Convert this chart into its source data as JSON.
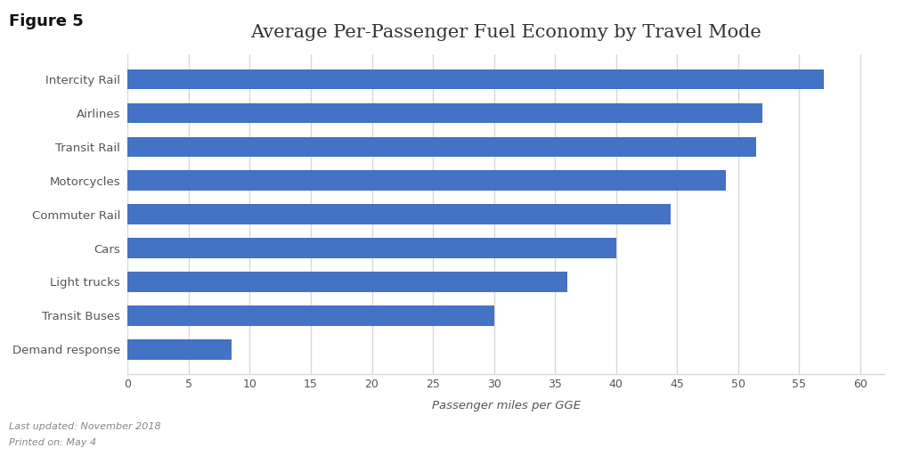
{
  "title": "Average Per-Passenger Fuel Economy by Travel Mode",
  "figure_label": "Figure 5",
  "categories": [
    "Demand response",
    "Transit Buses",
    "Light trucks",
    "Cars",
    "Commuter Rail",
    "Motorcycles",
    "Transit Rail",
    "Airlines",
    "Intercity Rail"
  ],
  "values": [
    8.5,
    30,
    36,
    40,
    44.5,
    49,
    51.5,
    52,
    57
  ],
  "bar_color": "#4472C4",
  "xlabel": "Passenger miles per GGE",
  "xlim": [
    0,
    62
  ],
  "xticks": [
    0,
    5,
    10,
    15,
    20,
    25,
    30,
    35,
    40,
    45,
    50,
    55,
    60
  ],
  "background_color": "#ffffff",
  "grid_color": "#d9d9d9",
  "footer_line1": "Last updated: November 2018",
  "footer_line2": "Printed on: May 4",
  "title_fontsize": 15,
  "label_fontsize": 9.5,
  "tick_fontsize": 9,
  "footer_fontsize": 8,
  "bar_height": 0.6,
  "figure_label_fontsize": 13
}
